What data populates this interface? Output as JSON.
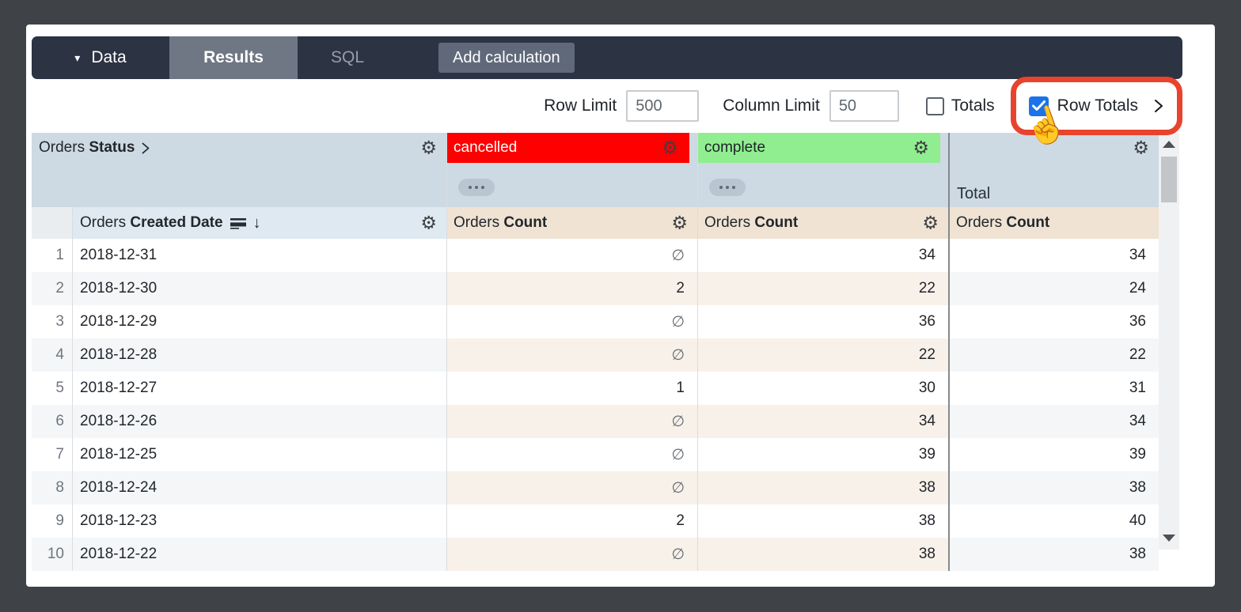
{
  "nav": {
    "data_label": "Data",
    "results_label": "Results",
    "sql_label": "SQL",
    "add_calculation_label": "Add calculation"
  },
  "controls": {
    "row_limit_label": "Row Limit",
    "row_limit_value": "500",
    "column_limit_label": "Column Limit",
    "column_limit_value": "50",
    "totals_label": "Totals",
    "row_totals_label": "Row Totals"
  },
  "table": {
    "pivot_dimension": {
      "prefix": "Orders",
      "name": "Status"
    },
    "row_dimension": {
      "prefix": "Orders",
      "name": "Created Date"
    },
    "measure": {
      "prefix": "Orders",
      "name": "Count"
    },
    "pivot_values": [
      "cancelled",
      "complete"
    ],
    "total_label": "Total",
    "colors": {
      "cancelled_bg": "#ff0000",
      "cancelled_text": "#ffffff",
      "complete_bg": "#90ee90",
      "complete_text": "#1d2328",
      "checkbox_blue": "#1a73e8",
      "highlight_red": "#e8432d"
    },
    "rows": [
      {
        "index": "1",
        "date": "2018-12-31",
        "cancelled": "∅",
        "complete": "34",
        "total": "34"
      },
      {
        "index": "2",
        "date": "2018-12-30",
        "cancelled": "2",
        "complete": "22",
        "total": "24"
      },
      {
        "index": "3",
        "date": "2018-12-29",
        "cancelled": "∅",
        "complete": "36",
        "total": "36"
      },
      {
        "index": "4",
        "date": "2018-12-28",
        "cancelled": "∅",
        "complete": "22",
        "total": "22"
      },
      {
        "index": "5",
        "date": "2018-12-27",
        "cancelled": "1",
        "complete": "30",
        "total": "31"
      },
      {
        "index": "6",
        "date": "2018-12-26",
        "cancelled": "∅",
        "complete": "34",
        "total": "34"
      },
      {
        "index": "7",
        "date": "2018-12-25",
        "cancelled": "∅",
        "complete": "39",
        "total": "39"
      },
      {
        "index": "8",
        "date": "2018-12-24",
        "cancelled": "∅",
        "complete": "38",
        "total": "38"
      },
      {
        "index": "9",
        "date": "2018-12-23",
        "cancelled": "2",
        "complete": "38",
        "total": "40"
      },
      {
        "index": "10",
        "date": "2018-12-22",
        "cancelled": "∅",
        "complete": "38",
        "total": "38"
      }
    ]
  },
  "icons": {
    "gear": "⚙",
    "caret_down": "▾",
    "sort_desc_arrow": "↓",
    "hand_cursor": "☝"
  }
}
